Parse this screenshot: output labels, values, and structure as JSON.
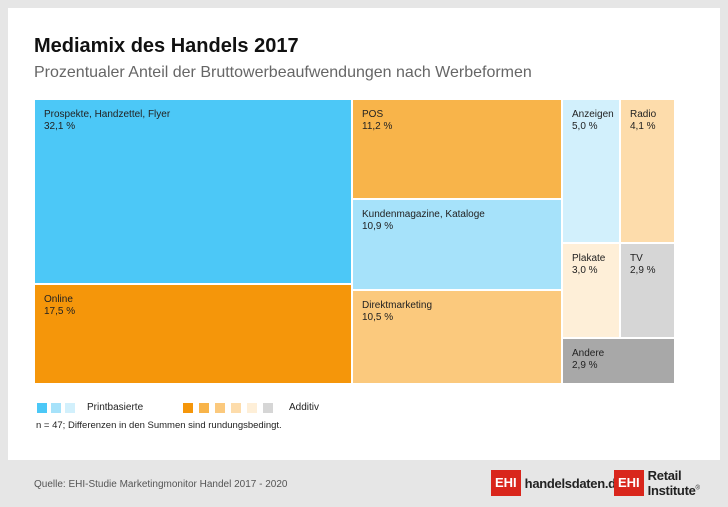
{
  "title": "Mediamix des Handels 2017",
  "subtitle": "Prozentualer Anteil der Bruttowerbeaufwendungen nach Werbeformen",
  "chart_data": {
    "type": "treemap",
    "title": "Mediamix des Handels 2017",
    "unit": "%",
    "items": [
      {
        "name": "Prospekte, Handzettel, Flyer",
        "label": "32,1 %",
        "value": 32.1,
        "group": "Printbasierte",
        "color": "#4cc8f7"
      },
      {
        "name": "Online",
        "label": "17,5 %",
        "value": 17.5,
        "group": "Additiv",
        "color": "#f5960a"
      },
      {
        "name": "POS",
        "label": "11,2 %",
        "value": 11.2,
        "group": "Additiv",
        "color": "#f8b44a"
      },
      {
        "name": "Kundenmagazine, Kataloge",
        "label": "10,9 %",
        "value": 10.9,
        "group": "Printbasierte",
        "color": "#a6e2fa"
      },
      {
        "name": "Direktmarketing",
        "label": "10,5 %",
        "value": 10.5,
        "group": "Additiv",
        "color": "#fbc97d"
      },
      {
        "name": "Anzeigen",
        "label": "5,0 %",
        "value": 5.0,
        "group": "Printbasierte",
        "color": "#d2f0fc"
      },
      {
        "name": "Radio",
        "label": "4,1 %",
        "value": 4.1,
        "group": "Additiv",
        "color": "#fddcab"
      },
      {
        "name": "Plakate",
        "label": "3,0 %",
        "value": 3.0,
        "group": "Additiv",
        "color": "#feefd8"
      },
      {
        "name": "TV",
        "label": "2,9 %",
        "value": 2.9,
        "group": "Additiv",
        "color": "#d6d6d6"
      },
      {
        "name": "Andere",
        "label": "2,9 %",
        "value": 2.9,
        "group": "Additiv",
        "color": "#a8a8a8"
      }
    ]
  },
  "legend": {
    "print_label": "Printbasierte",
    "additive_label": "Additiv",
    "print_colors": [
      "#4cc8f7",
      "#a6e2fa",
      "#d2f0fc"
    ],
    "additive_colors": [
      "#f5960a",
      "#f8b44a",
      "#fbc97d",
      "#fddcab",
      "#feefd8",
      "#d6d6d6"
    ]
  },
  "note": "n = 47; Differenzen in den Summen sind rundungsbedingt.",
  "source": "Quelle: EHI-Studie Marketingmonitor Handel 2017 - 2020",
  "logos": {
    "handelsdaten_box": "EHI",
    "handelsdaten_text": "handelsdaten.de",
    "retail_box": "EHI",
    "retail_text": "Retail Institute",
    "retail_reg": "®"
  }
}
